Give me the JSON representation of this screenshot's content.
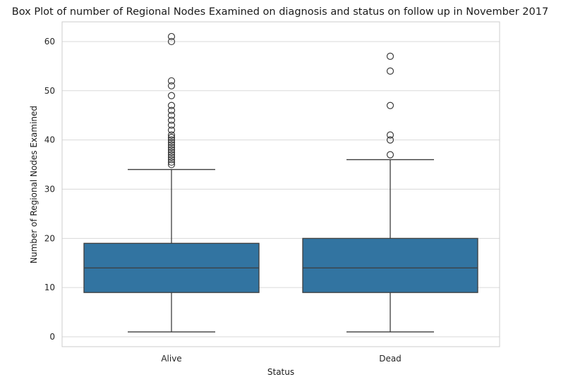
{
  "chart_data": {
    "type": "box",
    "title": "Box Plot of number of Regional Nodes Examined on diagnosis and status on follow up in November 2017",
    "xlabel": "Status",
    "ylabel": "Number of Regional Nodes Examined",
    "ylim": [
      -2,
      64
    ],
    "yticks": [
      0,
      10,
      20,
      30,
      40,
      50,
      60
    ],
    "grid": "y",
    "box_color": "#3274a1",
    "categories": [
      "Alive",
      "Dead"
    ],
    "boxes": [
      {
        "category": "Alive",
        "whisker_low": 1,
        "q1": 9,
        "median": 14,
        "q3": 19,
        "whisker_high": 34,
        "outliers": [
          35,
          35.5,
          36,
          36.5,
          37,
          37.5,
          38,
          38.5,
          39,
          39.5,
          40,
          40.5,
          41,
          42,
          43,
          44,
          45,
          46,
          47,
          49,
          51,
          52,
          60,
          61
        ]
      },
      {
        "category": "Dead",
        "whisker_low": 1,
        "q1": 9,
        "median": 14,
        "q3": 20,
        "whisker_high": 36,
        "outliers": [
          37,
          40,
          41,
          47,
          54,
          57
        ]
      }
    ]
  }
}
